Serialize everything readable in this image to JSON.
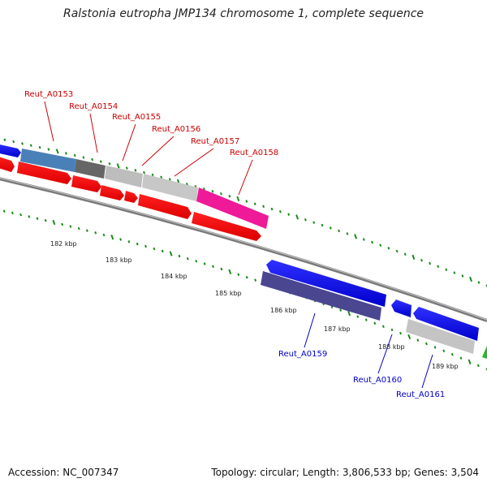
{
  "title": "Ralstonia eutropha JMP134 chromosome 1, complete sequence",
  "footer": {
    "accession_label": "Accession:",
    "accession": "NC_007347",
    "topology_label": "Topology:",
    "topology": "circular",
    "length_label": "Length:",
    "length": "3,806,533 bp",
    "genes_label": "Genes:",
    "genes": "3,504"
  },
  "colors": {
    "forward_strand": "#ff0000",
    "reverse_strand": "#0000ff",
    "backbone": "#808080",
    "tick": "#1a8a1a",
    "top_label": "#cc0000",
    "bottom_label": "#0000cc"
  },
  "ticks": [
    "182 kbp",
    "183 kbp",
    "184 kbp",
    "185 kbp",
    "186 kbp",
    "187 kbp",
    "188 kbp",
    "189 kbp"
  ],
  "gene_labels_top": [
    "Reut_A0153",
    "Reut_A0154",
    "Reut_A0155",
    "Reut_A0156",
    "Reut_A0157",
    "Reut_A0158"
  ],
  "gene_labels_bottom": [
    "Reut_A0159",
    "Reut_A0160",
    "Reut_A0161"
  ]
}
